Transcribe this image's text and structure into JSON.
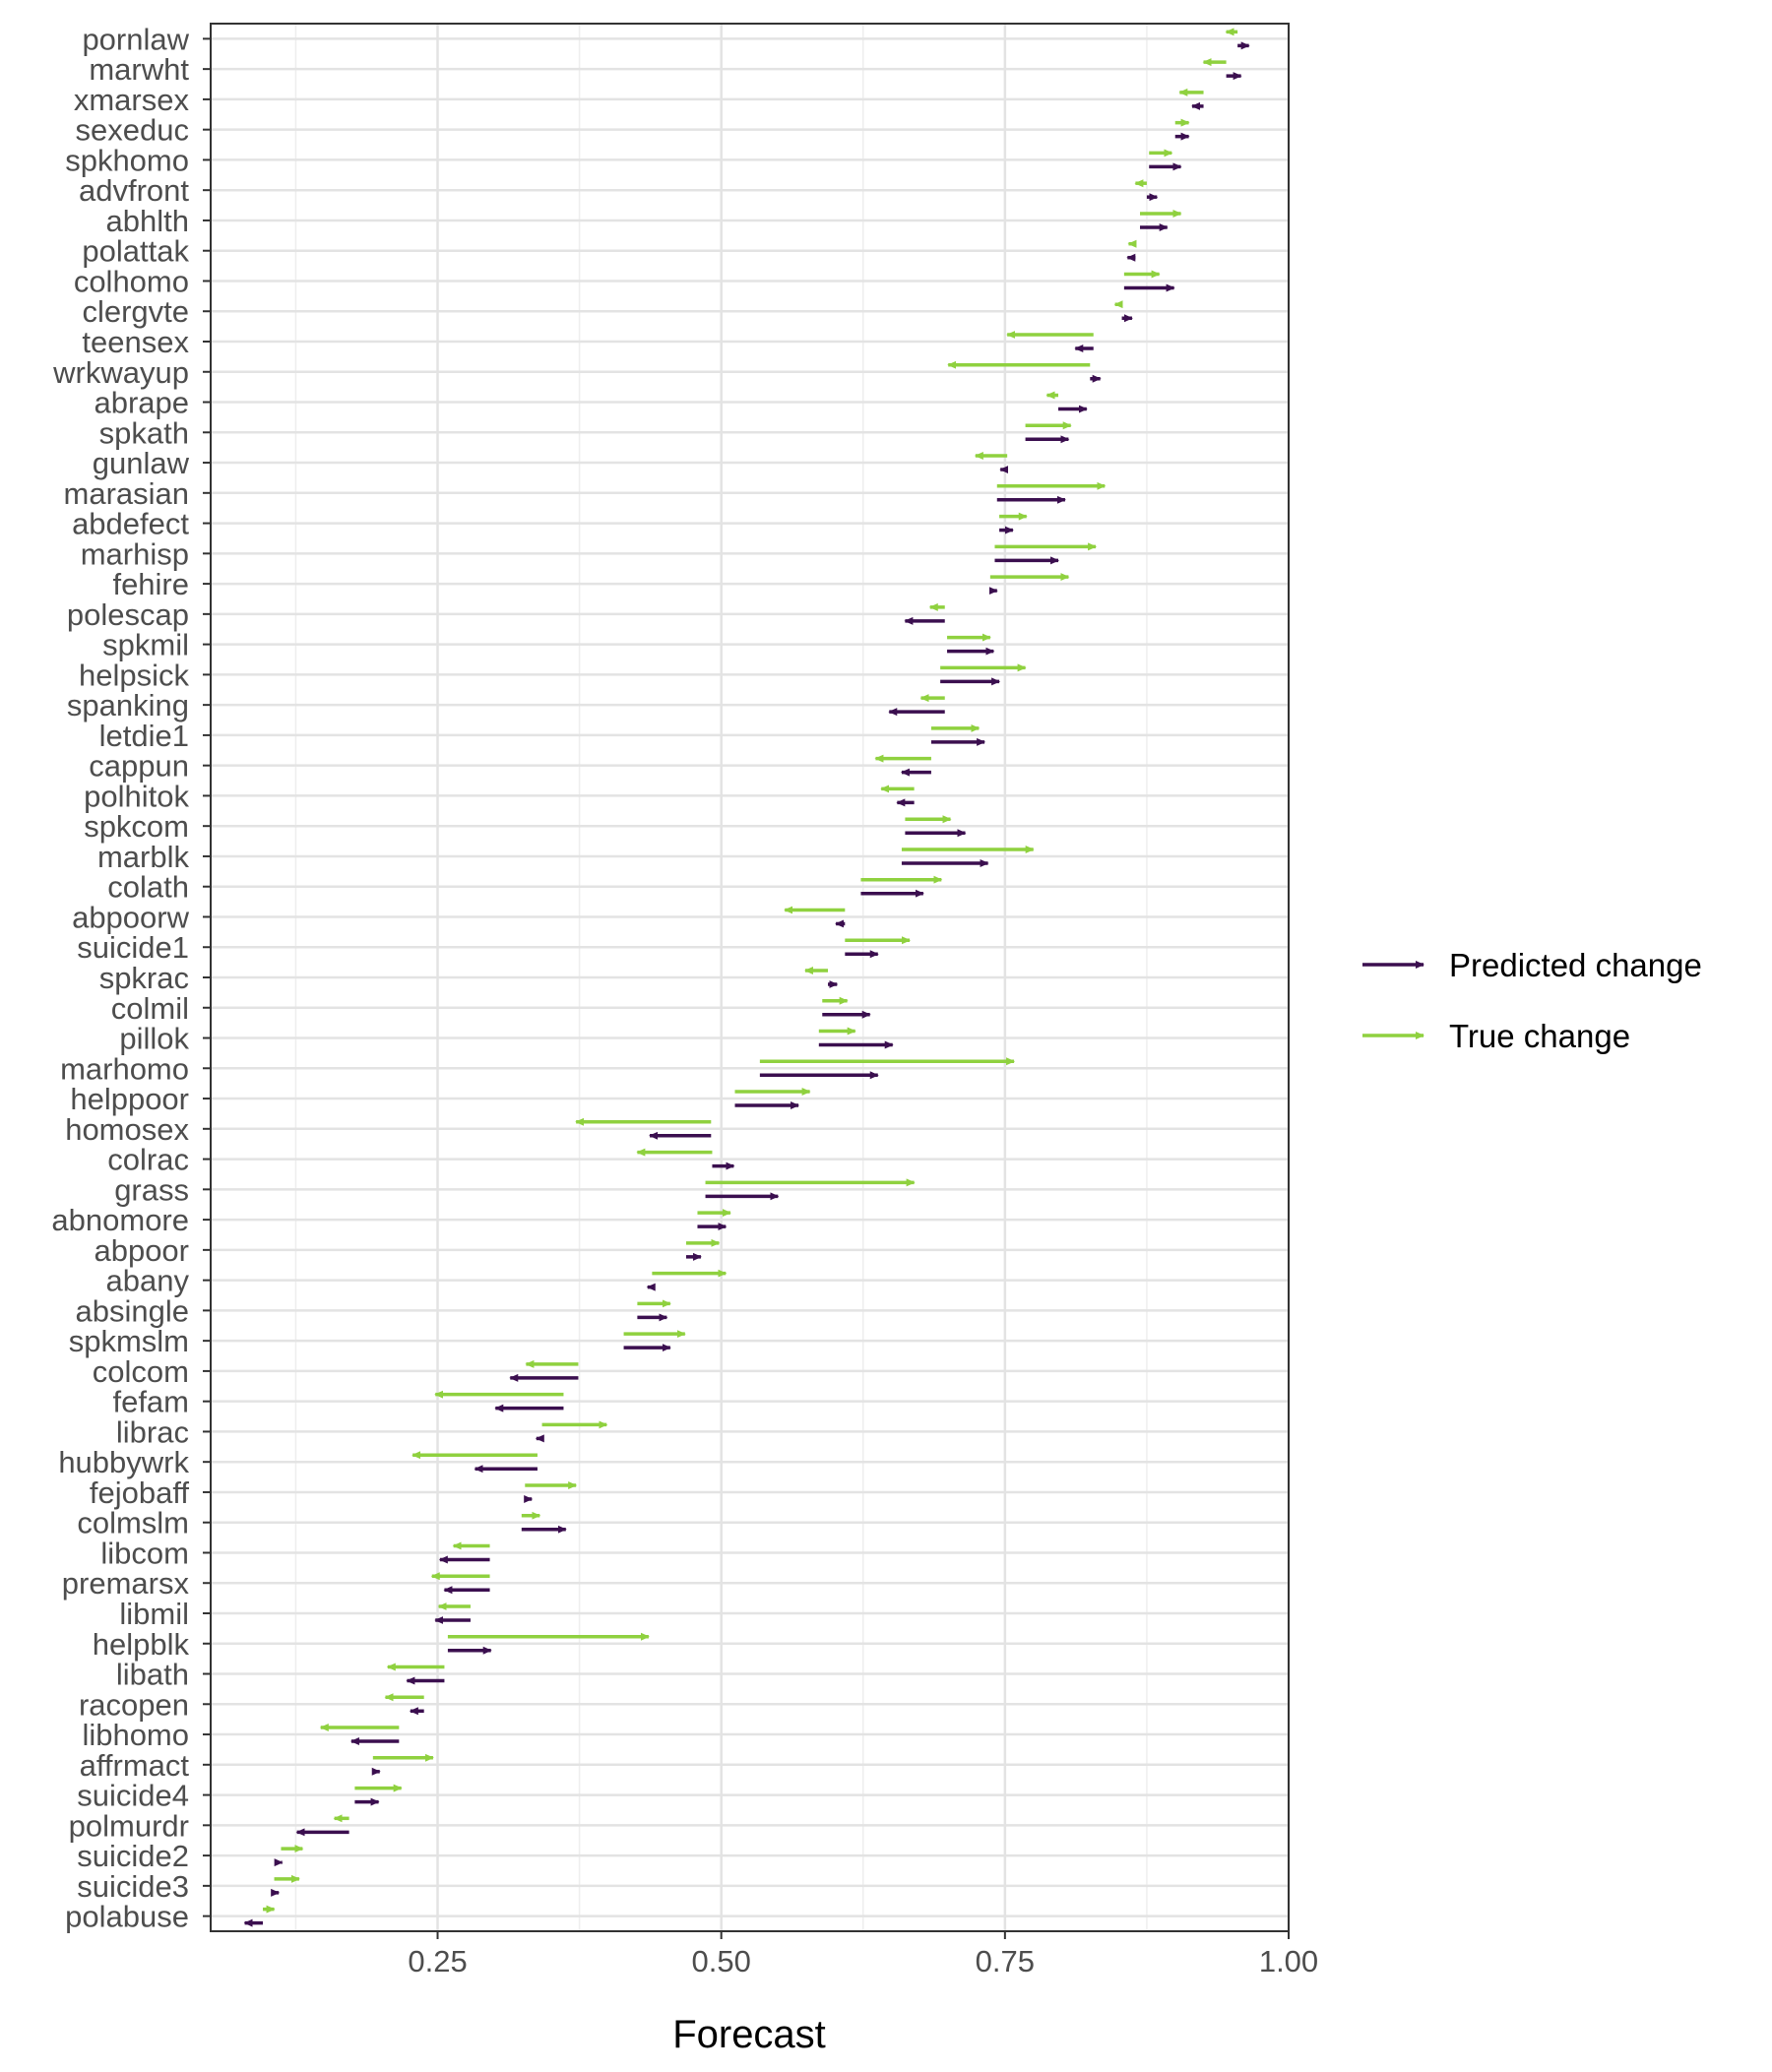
{
  "chart_data": {
    "type": "arrow",
    "xlabel": "Forecast",
    "ylabel": "",
    "xlim": [
      0.05,
      1.0
    ],
    "x_ticks": [
      "0.25",
      "0.50",
      "0.75",
      "1.00"
    ],
    "x_tick_values": [
      0.25,
      0.5,
      0.75,
      1.0
    ],
    "grid": true,
    "legend_position": "right",
    "series": [
      {
        "name": "Predicted change",
        "color": "#3b0f4f"
      },
      {
        "name": "True change",
        "color": "#8fd13f"
      }
    ],
    "items": [
      {
        "label": "pornlaw",
        "start": 0.955,
        "pred_end": 0.965,
        "true_end": 0.945
      },
      {
        "label": "marwht",
        "start": 0.945,
        "pred_end": 0.958,
        "true_end": 0.925
      },
      {
        "label": "xmarsex",
        "start": 0.925,
        "pred_end": 0.915,
        "true_end": 0.904
      },
      {
        "label": "sexeduc",
        "start": 0.9,
        "pred_end": 0.912,
        "true_end": 0.912
      },
      {
        "label": "spkhomo",
        "start": 0.877,
        "pred_end": 0.905,
        "true_end": 0.897
      },
      {
        "label": "advfront",
        "start": 0.875,
        "pred_end": 0.884,
        "true_end": 0.865
      },
      {
        "label": "abhlth",
        "start": 0.869,
        "pred_end": 0.893,
        "true_end": 0.905
      },
      {
        "label": "polattak",
        "start": 0.865,
        "pred_end": 0.858,
        "true_end": 0.859
      },
      {
        "label": "colhomo",
        "start": 0.855,
        "pred_end": 0.899,
        "true_end": 0.886
      },
      {
        "label": "clergvte",
        "start": 0.853,
        "pred_end": 0.862,
        "true_end": 0.847
      },
      {
        "label": "teensex",
        "start": 0.828,
        "pred_end": 0.812,
        "true_end": 0.752
      },
      {
        "label": "wrkwayup",
        "start": 0.825,
        "pred_end": 0.834,
        "true_end": 0.7
      },
      {
        "label": "abrape",
        "start": 0.797,
        "pred_end": 0.822,
        "true_end": 0.787
      },
      {
        "label": "spkath",
        "start": 0.768,
        "pred_end": 0.806,
        "true_end": 0.808
      },
      {
        "label": "gunlaw",
        "start": 0.752,
        "pred_end": 0.746,
        "true_end": 0.724
      },
      {
        "label": "marasian",
        "start": 0.743,
        "pred_end": 0.803,
        "true_end": 0.838
      },
      {
        "label": "abdefect",
        "start": 0.745,
        "pred_end": 0.757,
        "true_end": 0.769
      },
      {
        "label": "marhisp",
        "start": 0.741,
        "pred_end": 0.797,
        "true_end": 0.83
      },
      {
        "label": "fehire",
        "start": 0.737,
        "pred_end": 0.743,
        "true_end": 0.806
      },
      {
        "label": "polescap",
        "start": 0.697,
        "pred_end": 0.662,
        "true_end": 0.684
      },
      {
        "label": "spkmil",
        "start": 0.699,
        "pred_end": 0.74,
        "true_end": 0.737
      },
      {
        "label": "helpsick",
        "start": 0.693,
        "pred_end": 0.745,
        "true_end": 0.768
      },
      {
        "label": "spanking",
        "start": 0.697,
        "pred_end": 0.648,
        "true_end": 0.676
      },
      {
        "label": "letdie1",
        "start": 0.685,
        "pred_end": 0.732,
        "true_end": 0.727
      },
      {
        "label": "cappun",
        "start": 0.685,
        "pred_end": 0.659,
        "true_end": 0.636
      },
      {
        "label": "polhitok",
        "start": 0.67,
        "pred_end": 0.655,
        "true_end": 0.641
      },
      {
        "label": "spkcom",
        "start": 0.662,
        "pred_end": 0.715,
        "true_end": 0.702
      },
      {
        "label": "marblk",
        "start": 0.659,
        "pred_end": 0.735,
        "true_end": 0.775
      },
      {
        "label": "colath",
        "start": 0.623,
        "pred_end": 0.678,
        "true_end": 0.694
      },
      {
        "label": "abpoorw",
        "start": 0.609,
        "pred_end": 0.601,
        "true_end": 0.556
      },
      {
        "label": "suicide1",
        "start": 0.609,
        "pred_end": 0.638,
        "true_end": 0.666
      },
      {
        "label": "spkrac",
        "start": 0.594,
        "pred_end": 0.602,
        "true_end": 0.574
      },
      {
        "label": "colmil",
        "start": 0.589,
        "pred_end": 0.631,
        "true_end": 0.611
      },
      {
        "label": "pillok",
        "start": 0.586,
        "pred_end": 0.651,
        "true_end": 0.618
      },
      {
        "label": "marhomo",
        "start": 0.534,
        "pred_end": 0.638,
        "true_end": 0.758
      },
      {
        "label": "helppoor",
        "start": 0.512,
        "pred_end": 0.568,
        "true_end": 0.578
      },
      {
        "label": "homosex",
        "start": 0.491,
        "pred_end": 0.437,
        "true_end": 0.372
      },
      {
        "label": "colrac",
        "start": 0.492,
        "pred_end": 0.511,
        "true_end": 0.426
      },
      {
        "label": "grass",
        "start": 0.486,
        "pred_end": 0.55,
        "true_end": 0.67
      },
      {
        "label": "abnomore",
        "start": 0.479,
        "pred_end": 0.504,
        "true_end": 0.508
      },
      {
        "label": "abpoor",
        "start": 0.469,
        "pred_end": 0.482,
        "true_end": 0.498
      },
      {
        "label": "abany",
        "start": 0.439,
        "pred_end": 0.435,
        "true_end": 0.504
      },
      {
        "label": "absingle",
        "start": 0.426,
        "pred_end": 0.452,
        "true_end": 0.455
      },
      {
        "label": "spkmslm",
        "start": 0.414,
        "pred_end": 0.455,
        "true_end": 0.468
      },
      {
        "label": "colcom",
        "start": 0.374,
        "pred_end": 0.314,
        "true_end": 0.328
      },
      {
        "label": "fefam",
        "start": 0.361,
        "pred_end": 0.301,
        "true_end": 0.248
      },
      {
        "label": "librac",
        "start": 0.342,
        "pred_end": 0.337,
        "true_end": 0.399
      },
      {
        "label": "hubbywrk",
        "start": 0.338,
        "pred_end": 0.283,
        "true_end": 0.228
      },
      {
        "label": "fejobaff",
        "start": 0.327,
        "pred_end": 0.333,
        "true_end": 0.372
      },
      {
        "label": "colmslm",
        "start": 0.324,
        "pred_end": 0.363,
        "true_end": 0.34
      },
      {
        "label": "libcom",
        "start": 0.296,
        "pred_end": 0.252,
        "true_end": 0.264
      },
      {
        "label": "premarsx",
        "start": 0.296,
        "pred_end": 0.256,
        "true_end": 0.245
      },
      {
        "label": "libmil",
        "start": 0.279,
        "pred_end": 0.248,
        "true_end": 0.251
      },
      {
        "label": "helpblk",
        "start": 0.259,
        "pred_end": 0.297,
        "true_end": 0.436
      },
      {
        "label": "libath",
        "start": 0.256,
        "pred_end": 0.223,
        "true_end": 0.206
      },
      {
        "label": "racopen",
        "start": 0.238,
        "pred_end": 0.226,
        "true_end": 0.204
      },
      {
        "label": "libhomo",
        "start": 0.216,
        "pred_end": 0.174,
        "true_end": 0.147
      },
      {
        "label": "affrmact",
        "start": 0.193,
        "pred_end": 0.199,
        "true_end": 0.246
      },
      {
        "label": "suicide4",
        "start": 0.177,
        "pred_end": 0.198,
        "true_end": 0.218
      },
      {
        "label": "polmurdr",
        "start": 0.172,
        "pred_end": 0.126,
        "true_end": 0.159
      },
      {
        "label": "suicide2",
        "start": 0.112,
        "pred_end": 0.113,
        "true_end": 0.131
      },
      {
        "label": "suicide3",
        "start": 0.106,
        "pred_end": 0.11,
        "true_end": 0.128
      },
      {
        "label": "polabuse",
        "start": 0.096,
        "pred_end": 0.08,
        "true_end": 0.106
      }
    ]
  }
}
